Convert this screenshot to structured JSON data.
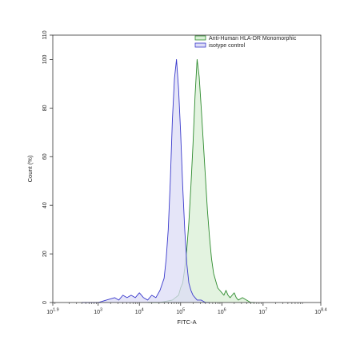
{
  "chart_data": {
    "type": "area",
    "xlabel": "FITC-A",
    "ylabel": "Count (%)",
    "x_scale": "log10",
    "xlim_log10": [
      1.9,
      8.4
    ],
    "ylim": [
      0,
      110
    ],
    "y_ticks": [
      0,
      20,
      40,
      60,
      80,
      100,
      110
    ],
    "y_tick_labels": [
      "0",
      "20",
      "40",
      "60",
      "80",
      "100",
      "110"
    ],
    "x_ticks_log10": [
      1.9,
      3,
      4,
      5,
      6,
      7,
      8.4
    ],
    "x_tick_labels": [
      {
        "base": "10",
        "exp": "1.9"
      },
      {
        "base": "10",
        "exp": "3"
      },
      {
        "base": "10",
        "exp": "4"
      },
      {
        "base": "10",
        "exp": "5"
      },
      {
        "base": "10",
        "exp": "6"
      },
      {
        "base": "10",
        "exp": "7"
      },
      {
        "base": "10",
        "exp": "8.4"
      }
    ],
    "grid": false,
    "legend_position": "top-right",
    "series": [
      {
        "name": "Anti-Human HLA-DR Monomorphic",
        "color": "#2e8b2e",
        "fill": "#d9efd6",
        "x_log10": [
          4.2,
          4.5,
          4.8,
          4.95,
          5.0,
          5.05,
          5.1,
          5.15,
          5.2,
          5.25,
          5.3,
          5.35,
          5.4,
          5.45,
          5.5,
          5.55,
          5.6,
          5.65,
          5.7,
          5.75,
          5.8,
          5.85,
          5.9,
          5.95,
          6.0,
          6.05,
          6.1,
          6.15,
          6.2,
          6.25,
          6.3,
          6.35,
          6.4,
          6.5,
          6.6,
          6.7,
          6.8
        ],
        "y": [
          0,
          0,
          1,
          3,
          6,
          8,
          14,
          22,
          33,
          48,
          65,
          85,
          100,
          93,
          80,
          66,
          52,
          38,
          27,
          18,
          12,
          9,
          6,
          5,
          4,
          3,
          5,
          3,
          2,
          3,
          4,
          2,
          1,
          2,
          1,
          0,
          0
        ]
      },
      {
        "name": "isotype control",
        "color": "#3a3acc",
        "fill": "#dcdcf5",
        "x_log10": [
          2.6,
          3.0,
          3.2,
          3.4,
          3.5,
          3.6,
          3.7,
          3.8,
          3.9,
          4.0,
          4.1,
          4.2,
          4.3,
          4.4,
          4.5,
          4.6,
          4.65,
          4.7,
          4.75,
          4.8,
          4.85,
          4.9,
          4.95,
          5.0,
          5.05,
          5.1,
          5.15,
          5.2,
          5.25,
          5.3,
          5.35,
          5.4,
          5.5,
          5.6,
          5.7
        ],
        "y": [
          0,
          0,
          1,
          2,
          1,
          3,
          2,
          3,
          2,
          4,
          2,
          1,
          3,
          2,
          5,
          10,
          18,
          30,
          50,
          75,
          92,
          100,
          88,
          70,
          48,
          30,
          16,
          8,
          5,
          3,
          2,
          1,
          1,
          0,
          0
        ]
      }
    ]
  }
}
